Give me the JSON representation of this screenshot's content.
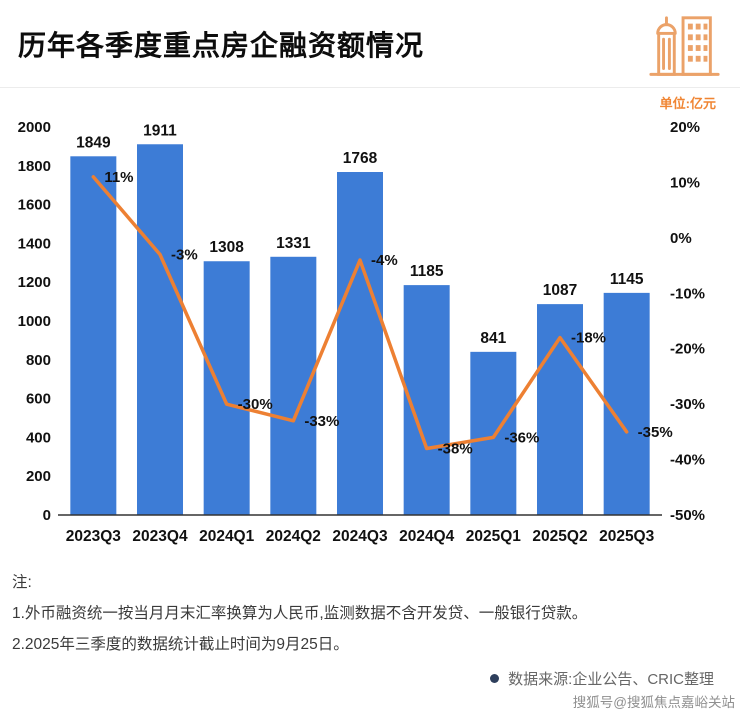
{
  "header": {
    "title": "历年各季度重点房企融资额情况"
  },
  "unit_label": "单位:亿元",
  "chart_data": {
    "type": "bar",
    "subtype": "bar+line combo",
    "categories": [
      "2023Q3",
      "2023Q4",
      "2024Q1",
      "2024Q2",
      "2024Q3",
      "2024Q4",
      "2025Q1",
      "2025Q2",
      "2025Q3"
    ],
    "series": [
      {
        "type": "bar",
        "axis": "left",
        "color": "#3d7cd6",
        "values": [
          1849,
          1911,
          1308,
          1331,
          1768,
          1185,
          841,
          1087,
          1145
        ]
      },
      {
        "type": "line",
        "axis": "right",
        "color": "#ed8033",
        "values": [
          11,
          -3,
          -30,
          -33,
          -4,
          -38,
          -36,
          -18,
          -35
        ],
        "labels": [
          "11%",
          "-3%",
          "-30%",
          "-33%",
          "-4%",
          "-38%",
          "-36%",
          "-18%",
          "-35%"
        ]
      }
    ],
    "left_axis": {
      "min": 0,
      "max": 2000,
      "step": 200,
      "ticks": [
        "0",
        "200",
        "400",
        "600",
        "800",
        "1000",
        "1200",
        "1400",
        "1600",
        "1800",
        "2000"
      ]
    },
    "right_axis": {
      "min": -50,
      "max": 20,
      "step": 10,
      "ticks": [
        "20%",
        "10%",
        "0%",
        "-10%",
        "-20%",
        "-30%",
        "-40%",
        "-50%"
      ]
    },
    "grid": false,
    "legend": "none",
    "title": "历年各季度重点房企融资额情况",
    "xlabel": "",
    "ylabel_left": "亿元",
    "ylabel_right": "%"
  },
  "notes": {
    "label": "注:",
    "lines": [
      "1.外币融资统一按当月月末汇率换算为人民币,监测数据不含开发贷、一般银行贷款。",
      "2.2025年三季度的数据统计截止时间为9月25日。"
    ]
  },
  "source": {
    "text": "数据来源:企业公告、CRIC整理"
  },
  "watermark": "搜狐号@搜狐焦点嘉峪关站"
}
